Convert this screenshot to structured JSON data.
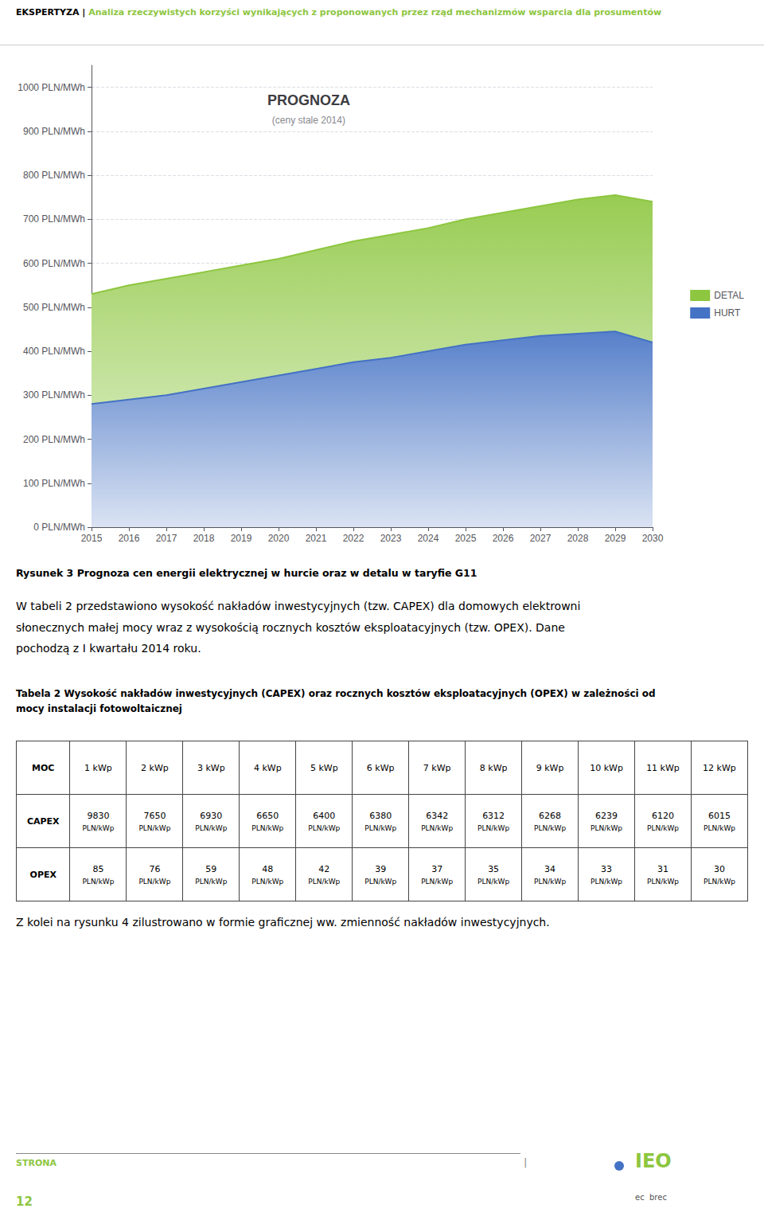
{
  "chart_data": {
    "type": "area",
    "title": "PROGNOZA",
    "subtitle": "(ceny stale 2014)",
    "x": [
      2015,
      2016,
      2017,
      2018,
      2019,
      2020,
      2021,
      2022,
      2023,
      2024,
      2025,
      2026,
      2027,
      2028,
      2029,
      2030
    ],
    "series": [
      {
        "name": "DETAL",
        "color": "#8dc63f",
        "values": [
          530,
          550,
          565,
          580,
          595,
          610,
          630,
          650,
          665,
          680,
          700,
          715,
          730,
          745,
          755,
          740
        ]
      },
      {
        "name": "HURT",
        "color": "#4472c4",
        "values": [
          280,
          290,
          300,
          315,
          330,
          345,
          360,
          375,
          385,
          400,
          415,
          425,
          435,
          440,
          445,
          420
        ]
      }
    ],
    "stacked": false,
    "xlim": [
      2015,
      2030
    ],
    "xticks": [
      2015,
      2016,
      2017,
      2018,
      2019,
      2020,
      2021,
      2022,
      2023,
      2024,
      2025,
      2026,
      2027,
      2028,
      2029,
      2030
    ],
    "ylim": [
      0,
      1050
    ],
    "yticks": [
      {
        "value": 0,
        "label": "0 PLN/MWh"
      },
      {
        "value": 100,
        "label": "100 PLN/MWh"
      },
      {
        "value": 200,
        "label": "200 PLN/MWh"
      },
      {
        "value": 300,
        "label": "300 PLN/MWh"
      },
      {
        "value": 400,
        "label": "400 PLN/MWh"
      },
      {
        "value": 500,
        "label": "500 PLN/MWh"
      },
      {
        "value": 600,
        "label": "600 PLN/MWh"
      },
      {
        "value": 700,
        "label": "700 PLN/MWh"
      },
      {
        "value": 800,
        "label": "800 PLN/MWh"
      },
      {
        "value": 900,
        "label": "900 PLN/MWh"
      },
      {
        "value": 1000,
        "label": "1000 PLN/MWh"
      }
    ],
    "grid": true,
    "legend": "right"
  },
  "page": {
    "header": "EKSPERTYZA",
    "header_sep": " | ",
    "header_text": "Analiza rzeczywistych korzyści wynikających z proponowanych przez rząd mechanizmów wsparcia dla prosumentów",
    "caption": "Rysunek 3 Prognoza cen energii elektrycznej w hurcie oraz w detalu w taryfie G11",
    "paragraph1": [
      "W tabeli 2 przedstawiono wysokość nakładów inwestycyjnych (tzw. CAPEX) dla domowych elektrowni",
      "słonecznych małej mocy wraz z wysokością rocznych kosztów eksploatacyjnych (tzw. OPEX). Dane",
      "pochodzą z I kwartału 2014 roku."
    ],
    "table_title": [
      "Tabela 2 Wysokość nakładów inwestycyjnych (CAPEX) oraz rocznych kosztów eksploatacyjnych (OPEX) w zależności od",
      "mocy instalacji fotowoltaicznej"
    ],
    "table": {
      "row_labels": [
        "MOC",
        "CAPEX",
        "OPEX"
      ],
      "moc": [
        "1 kWp",
        "2 kWp",
        "3 kWp",
        "4 kWp",
        "5 kWp",
        "6 kWp",
        "7 kWp",
        "8 kWp",
        "9 kWp",
        "10 kWp",
        "11 kWp",
        "12 kWp"
      ],
      "capex": [
        "9830",
        "7650",
        "6930",
        "6650",
        "6400",
        "6380",
        "6342",
        "6312",
        "6268",
        "6239",
        "6120",
        "6015"
      ],
      "capex_unit": "PLN/kWp",
      "opex": [
        "85",
        "76",
        "59",
        "48",
        "42",
        "39",
        "37",
        "35",
        "34",
        "33",
        "31",
        "30"
      ],
      "opex_unit": "PLN/kWp"
    },
    "paragraph2": "Z kolei na rysunku 4 zilustrowano w formie graficznej ww. zmienność nakładów inwestycyjnych.",
    "footer": "STRONA",
    "footer_sep": "|",
    "logo": "IEO",
    "logo_sub": "ec  brec",
    "page_number": "12"
  }
}
